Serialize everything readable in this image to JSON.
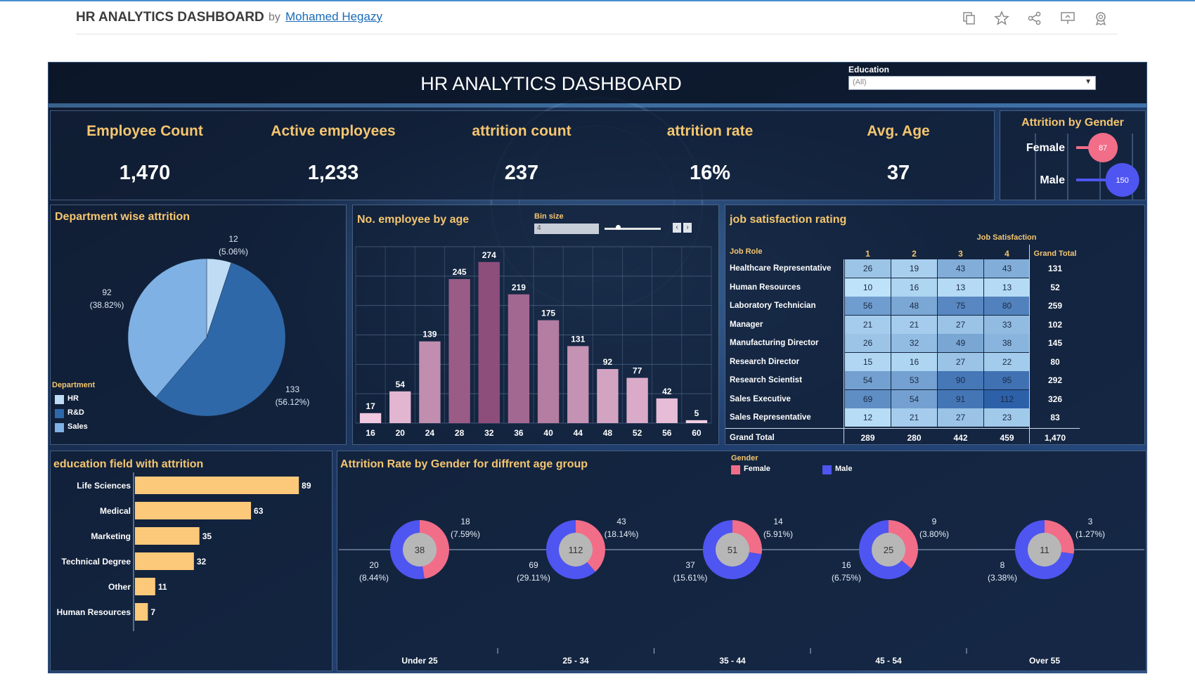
{
  "header": {
    "title": "HR ANALYTICS DASHBOARD",
    "by": "by",
    "author": "Mohamed Hegazy"
  },
  "toolbar_icons": [
    "copy-icon",
    "star-icon",
    "share-icon",
    "present-icon",
    "badge-icon"
  ],
  "dashboard": {
    "title": "HR ANALYTICS DASHBOARD",
    "education_filter": {
      "label": "Education",
      "value": "(All)"
    }
  },
  "kpis": [
    {
      "title": "Employee Count",
      "value": "1,470"
    },
    {
      "title": "Active employees",
      "value": "1,233"
    },
    {
      "title": "attrition count",
      "value": "237"
    },
    {
      "title": "attrition rate",
      "value": "16%"
    },
    {
      "title": "Avg. Age",
      "value": "37"
    }
  ],
  "colors": {
    "accent": "#f5c66f",
    "female": "#f26d88",
    "male": "#4f55f0",
    "bar_edu": "#fcc97a",
    "pie_hr": "#c0dcf5",
    "pie_rd": "#2e68a9",
    "pie_sales": "#7fb1e4"
  },
  "chart_data": [
    {
      "id": "attrition_by_gender",
      "type": "dot",
      "title": "Attrition by Gender",
      "categories": [
        "Female",
        "Male"
      ],
      "values": [
        87,
        150
      ],
      "labels": [
        "87",
        "150"
      ]
    },
    {
      "id": "department_attrition",
      "type": "pie",
      "title": "Department wise attrition",
      "legend_title": "Department",
      "categories": [
        "HR",
        "R&D",
        "Sales"
      ],
      "values": [
        12,
        133,
        92
      ],
      "labels": [
        "12",
        "133",
        "92"
      ],
      "percents": [
        "(5.06%)",
        "(56.12%)",
        "(38.82%)"
      ]
    },
    {
      "id": "employee_by_age",
      "type": "bar",
      "title": "No. employee by age",
      "bin_size_label": "Bin size",
      "bin_size_value": "4",
      "categories": [
        "16",
        "20",
        "24",
        "28",
        "32",
        "36",
        "40",
        "44",
        "48",
        "52",
        "56",
        "60"
      ],
      "values": [
        17,
        54,
        139,
        245,
        274,
        219,
        175,
        131,
        92,
        77,
        42,
        5
      ],
      "value_labels": [
        "17",
        "54",
        "139",
        "245",
        "274",
        "219",
        "175",
        "131",
        "92",
        "77",
        "42",
        "5"
      ],
      "ylim": [
        0,
        300
      ]
    },
    {
      "id": "job_satisfaction",
      "type": "table",
      "title": "job satisfaction rating",
      "column_group": "Job Satisfaction",
      "row_header": "Job Role",
      "columns": [
        "1",
        "2",
        "3",
        "4"
      ],
      "grand_total_label": "Grand Total",
      "rows": [
        {
          "role": "Healthcare Representative",
          "values": [
            "26",
            "19",
            "43",
            "43"
          ],
          "total": "131"
        },
        {
          "role": "Human Resources",
          "values": [
            "10",
            "16",
            "13",
            "13"
          ],
          "total": "52"
        },
        {
          "role": "Laboratory Technician",
          "values": [
            "56",
            "48",
            "75",
            "80"
          ],
          "total": "259"
        },
        {
          "role": "Manager",
          "values": [
            "21",
            "21",
            "27",
            "33"
          ],
          "total": "102"
        },
        {
          "role": "Manufacturing Director",
          "values": [
            "26",
            "32",
            "49",
            "38"
          ],
          "total": "145"
        },
        {
          "role": "Research Director",
          "values": [
            "15",
            "16",
            "27",
            "22"
          ],
          "total": "80"
        },
        {
          "role": "Research Scientist",
          "values": [
            "54",
            "53",
            "90",
            "95"
          ],
          "total": "292"
        },
        {
          "role": "Sales Executive",
          "values": [
            "69",
            "54",
            "91",
            "112"
          ],
          "total": "326"
        },
        {
          "role": "Sales Representative",
          "values": [
            "12",
            "21",
            "27",
            "23"
          ],
          "total": "83"
        }
      ],
      "column_totals": [
        "289",
        "280",
        "442",
        "459"
      ],
      "overall_total": "1,470"
    },
    {
      "id": "education_field_attrition",
      "type": "bar",
      "orientation": "horizontal",
      "title": "education field with attrition",
      "categories": [
        "Life Sciences",
        "Medical",
        "Marketing",
        "Technical Degree",
        "Other",
        "Human Resources"
      ],
      "values": [
        89,
        63,
        35,
        32,
        11,
        7
      ],
      "value_labels": [
        "89",
        "63",
        "35",
        "32",
        "11",
        "7"
      ],
      "xlim": [
        0,
        100
      ]
    },
    {
      "id": "attrition_gender_age",
      "type": "pie",
      "title": "Attrition Rate by Gender for diffrent age group",
      "legend_title": "Gender",
      "series_names": [
        "Female",
        "Male"
      ],
      "groups": [
        {
          "name": "Under 25",
          "total": "38",
          "female": 18,
          "male": 20,
          "female_label": "18",
          "female_pct": "(7.59%)",
          "male_label": "20",
          "male_pct": "(8.44%)"
        },
        {
          "name": "25 - 34",
          "total": "112",
          "female": 43,
          "male": 69,
          "female_label": "43",
          "female_pct": "(18.14%)",
          "male_label": "69",
          "male_pct": "(29.11%)"
        },
        {
          "name": "35 - 44",
          "total": "51",
          "female": 14,
          "male": 37,
          "female_label": "14",
          "female_pct": "(5.91%)",
          "male_label": "37",
          "male_pct": "(15.61%)"
        },
        {
          "name": "45 - 54",
          "total": "25",
          "female": 9,
          "male": 16,
          "female_label": "9",
          "female_pct": "(3.80%)",
          "male_label": "16",
          "male_pct": "(6.75%)"
        },
        {
          "name": "Over 55",
          "total": "11",
          "female": 3,
          "male": 8,
          "female_label": "3",
          "female_pct": "(1.27%)",
          "male_label": "8",
          "male_pct": "(3.38%)"
        }
      ]
    }
  ]
}
